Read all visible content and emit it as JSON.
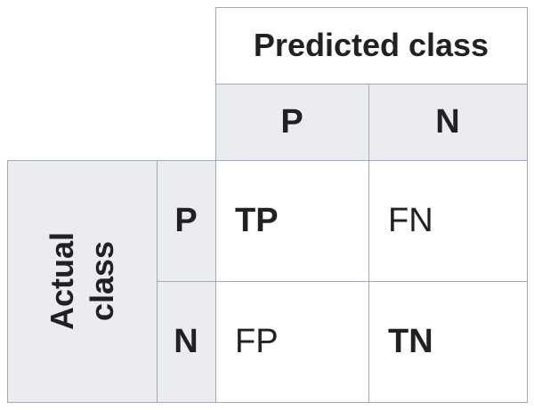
{
  "matrix": {
    "predicted_header": "Predicted class",
    "actual_header_line1": "Actual",
    "actual_header_line2": "class",
    "predicted_labels": [
      "P",
      "N"
    ],
    "actual_labels": [
      "P",
      "N"
    ],
    "cells": {
      "tp": "TP",
      "fn": "FN",
      "fp": "FP",
      "tn": "TN"
    }
  },
  "colors": {
    "header_bg": "#eaecf0",
    "cell_bg": "#ffffff",
    "border": "#a2a9b1",
    "text": "#202122"
  }
}
